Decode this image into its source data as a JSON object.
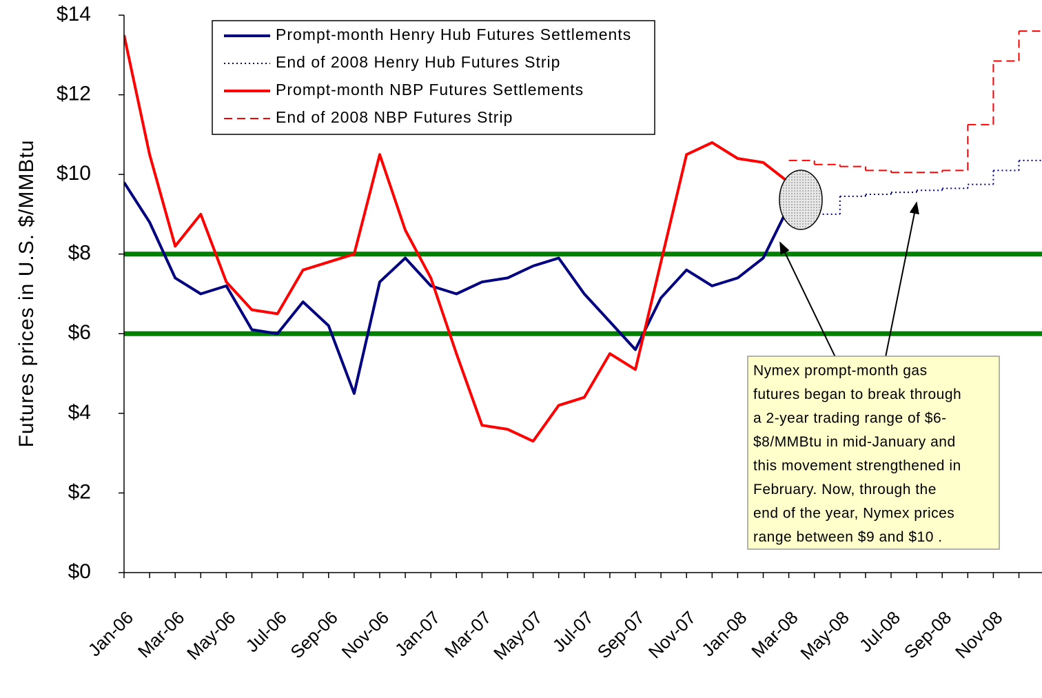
{
  "chart_data": {
    "type": "line",
    "y_label": "Futures prices in U.S. $/MMBtu",
    "categories": [
      "Jan-06",
      null,
      "Mar-06",
      null,
      "May-06",
      null,
      "Jul-06",
      null,
      "Sep-06",
      null,
      "Nov-06",
      null,
      "Jan-07",
      null,
      "Mar-07",
      null,
      "May-07",
      null,
      "Jul-07",
      null,
      "Sep-07",
      null,
      "Nov-07",
      null,
      "Jan-08",
      null,
      "Mar-08",
      null,
      "May-08",
      null,
      "Jul-08",
      null,
      "Sep-08",
      null,
      "Nov-08",
      null
    ],
    "ylim": [
      0,
      14
    ],
    "yticks": [
      {
        "value": 0,
        "label": "$0"
      },
      {
        "value": 2,
        "label": "$2"
      },
      {
        "value": 4,
        "label": "$4"
      },
      {
        "value": 6,
        "label": "$6"
      },
      {
        "value": 8,
        "label": "$8"
      },
      {
        "value": 10,
        "label": "$10"
      },
      {
        "value": 12,
        "label": "$12"
      },
      {
        "value": 14,
        "label": "$14"
      }
    ],
    "grid": true,
    "reference_lines": {
      "values": [
        8,
        6
      ],
      "color": "#008000"
    },
    "series": [
      {
        "name": "Prompt-month Henry Hub Futures Settlements",
        "color": "#000080",
        "style": "solid",
        "step": false,
        "values": [
          9.8,
          8.8,
          7.4,
          7.0,
          7.2,
          6.1,
          6.0,
          6.8,
          6.2,
          4.5,
          7.3,
          7.9,
          7.2,
          7.0,
          7.3,
          7.4,
          7.7,
          7.9,
          7.0,
          6.3,
          5.6,
          6.9,
          7.6,
          7.2,
          7.4,
          7.9,
          9.2,
          null,
          null,
          null,
          null,
          null,
          null,
          null,
          null,
          null
        ]
      },
      {
        "name": "End of 2008 Henry Hub Futures Strip",
        "color": "#000080",
        "style": "dotted",
        "step": true,
        "values": [
          null,
          null,
          null,
          null,
          null,
          null,
          null,
          null,
          null,
          null,
          null,
          null,
          null,
          null,
          null,
          null,
          null,
          null,
          null,
          null,
          null,
          null,
          null,
          null,
          null,
          null,
          9.0,
          9.0,
          9.45,
          9.5,
          9.55,
          9.6,
          9.65,
          9.75,
          10.1,
          10.35
        ]
      },
      {
        "name": "Prompt-month NBP Futures Settlements",
        "color": "#ff0000",
        "style": "solid",
        "step": false,
        "values": [
          13.5,
          10.5,
          8.2,
          9.0,
          7.3,
          6.6,
          6.5,
          7.6,
          7.8,
          8.0,
          10.5,
          8.6,
          7.4,
          5.5,
          3.7,
          3.6,
          3.3,
          4.2,
          4.4,
          5.5,
          5.1,
          7.8,
          10.5,
          10.8,
          10.4,
          10.3,
          9.8,
          null,
          null,
          null,
          null,
          null,
          null,
          null,
          null,
          null
        ]
      },
      {
        "name": "End of 2008 NBP Futures Strip",
        "color": "#ff0000",
        "style": "dashed",
        "step": true,
        "values": [
          null,
          null,
          null,
          null,
          null,
          null,
          null,
          null,
          null,
          null,
          null,
          null,
          null,
          null,
          null,
          null,
          null,
          null,
          null,
          null,
          null,
          null,
          null,
          null,
          null,
          null,
          10.35,
          10.25,
          10.2,
          10.1,
          10.05,
          10.05,
          10.1,
          11.25,
          12.85,
          13.6
        ]
      }
    ],
    "annotation": {
      "lines": [
        "Nymex prompt-month gas",
        "futures began to break through",
        "a 2-year trading range of $6-",
        "$8/MMBtu in mid-January and",
        "this movement strengthened in",
        "February.  Now, through the",
        "end of the year, Nymex prices",
        "range between $9 and $10 ."
      ]
    }
  }
}
